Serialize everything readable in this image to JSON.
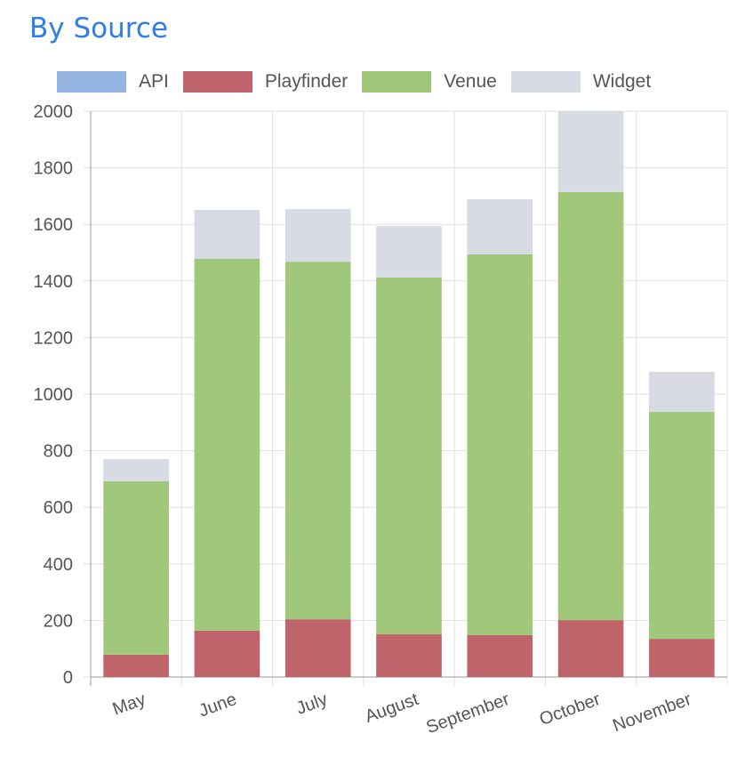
{
  "chart_data": {
    "type": "bar",
    "stacked": true,
    "title": "By Source",
    "xlabel": "",
    "ylabel": "",
    "ylim": [
      0,
      2000
    ],
    "yticks": [
      0,
      200,
      400,
      600,
      800,
      1000,
      1200,
      1400,
      1600,
      1800,
      2000
    ],
    "grid": true,
    "legend_position": "top",
    "categories": [
      "May",
      "June",
      "July",
      "August",
      "September",
      "October",
      "November"
    ],
    "series": [
      {
        "name": "API",
        "color": "#93b3e0",
        "values": [
          0,
          0,
          0,
          0,
          0,
          0,
          0
        ]
      },
      {
        "name": "Playfinder",
        "color": "#c0646b",
        "values": [
          79,
          164,
          204,
          151,
          148,
          201,
          135
        ]
      },
      {
        "name": "Venue",
        "color": "#a1c87a",
        "values": [
          613,
          1314,
          1264,
          1261,
          1346,
          1513,
          802
        ]
      },
      {
        "name": "Widget",
        "color": "#d9dbe4",
        "values": [
          78,
          173,
          186,
          182,
          195,
          286,
          142
        ]
      }
    ]
  }
}
